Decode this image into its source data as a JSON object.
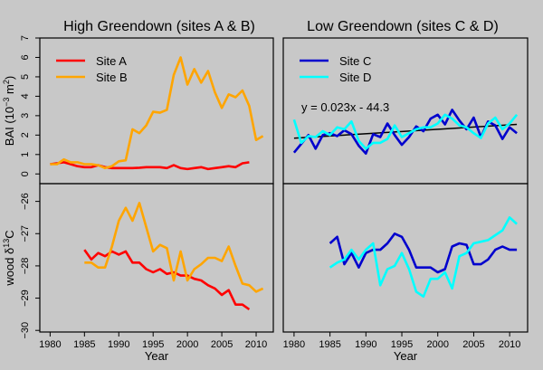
{
  "chart_data": [
    {
      "type": "line",
      "panel": "top-left",
      "title": "High Greendown (sites A & B)",
      "xlabel": "",
      "ylabel": "BAI (10^-3 m^2)",
      "ylim": [
        -0.5,
        7
      ],
      "yticks": [
        0,
        1,
        2,
        3,
        4,
        5,
        6,
        7
      ],
      "legend": "top-left",
      "series": [
        {
          "name": "Site A",
          "color": "#ff0000",
          "x": [
            1980,
            1981,
            1982,
            1983,
            1984,
            1985,
            1986,
            1987,
            1988,
            1989,
            1990,
            1991,
            1992,
            1993,
            1994,
            1995,
            1996,
            1997,
            1998,
            1999,
            2000,
            2001,
            2002,
            2003,
            2004,
            2005,
            2006,
            2007,
            2008,
            2009
          ],
          "values": [
            0.5,
            0.55,
            0.6,
            0.5,
            0.4,
            0.35,
            0.35,
            0.45,
            0.35,
            0.3,
            0.3,
            0.3,
            0.3,
            0.32,
            0.35,
            0.35,
            0.35,
            0.3,
            0.45,
            0.3,
            0.25,
            0.3,
            0.35,
            0.25,
            0.3,
            0.35,
            0.4,
            0.35,
            0.55,
            0.6
          ]
        },
        {
          "name": "Site B",
          "color": "#ffa500",
          "x": [
            1980,
            1981,
            1982,
            1983,
            1984,
            1985,
            1986,
            1987,
            1988,
            1989,
            1990,
            1991,
            1992,
            1993,
            1994,
            1995,
            1996,
            1997,
            1998,
            1999,
            2000,
            2001,
            2002,
            2003,
            2004,
            2005,
            2006,
            2007,
            2008,
            2009,
            2010,
            2011
          ],
          "values": [
            0.5,
            0.5,
            0.75,
            0.6,
            0.6,
            0.5,
            0.5,
            0.45,
            0.3,
            0.4,
            0.65,
            0.7,
            2.3,
            2.1,
            2.5,
            3.2,
            3.15,
            3.3,
            5.1,
            6.0,
            4.6,
            5.4,
            4.7,
            5.3,
            4.2,
            3.4,
            4.1,
            3.95,
            4.3,
            3.5,
            1.75,
            1.95
          ]
        }
      ]
    },
    {
      "type": "line",
      "panel": "top-right",
      "title": "Low Greendown (sites C & D)",
      "xlabel": "",
      "ylabel": "",
      "ylim": [
        -0.5,
        7
      ],
      "legend": "top-left",
      "annotation": "y = 0.023x - 44.3",
      "trendline": {
        "x": [
          1980,
          2011
        ],
        "values": [
          1.84,
          2.55
        ],
        "color": "#000000"
      },
      "series": [
        {
          "name": "Site C",
          "color": "#0000cd",
          "x": [
            1980,
            1981,
            1982,
            1983,
            1984,
            1985,
            1986,
            1987,
            1988,
            1989,
            1990,
            1991,
            1992,
            1993,
            1994,
            1995,
            1996,
            1997,
            1998,
            1999,
            2000,
            2001,
            2002,
            2003,
            2004,
            2005,
            2006,
            2007,
            2008,
            2009,
            2010,
            2011
          ],
          "values": [
            1.1,
            1.55,
            2.0,
            1.3,
            2.0,
            2.1,
            1.95,
            2.25,
            2.05,
            1.45,
            1.05,
            2.05,
            1.9,
            2.6,
            2.0,
            1.5,
            1.9,
            2.45,
            2.2,
            2.85,
            3.05,
            2.55,
            3.3,
            2.75,
            2.3,
            2.9,
            1.9,
            2.7,
            2.5,
            1.8,
            2.4,
            2.1
          ]
        },
        {
          "name": "Site D",
          "color": "#00ffff",
          "x": [
            1980,
            1981,
            1982,
            1983,
            1984,
            1985,
            1986,
            1987,
            1988,
            1989,
            1990,
            1991,
            1992,
            1993,
            1994,
            1995,
            1996,
            1997,
            1998,
            1999,
            2000,
            2001,
            2002,
            2003,
            2004,
            2005,
            2006,
            2007,
            2008,
            2009,
            2010,
            2011
          ],
          "values": [
            2.8,
            1.6,
            1.95,
            1.9,
            2.2,
            2.0,
            2.4,
            2.3,
            2.7,
            1.7,
            1.3,
            1.6,
            1.6,
            1.8,
            2.5,
            1.9,
            2.1,
            2.3,
            2.4,
            2.4,
            2.6,
            3.05,
            2.85,
            2.5,
            2.4,
            2.1,
            1.85,
            2.6,
            2.9,
            2.3,
            2.6,
            3.05
          ]
        }
      ]
    },
    {
      "type": "line",
      "panel": "bottom-left",
      "title": "",
      "xlabel": "Year",
      "ylabel": "wood δ13C",
      "xlim": [
        1978.5,
        2012.5
      ],
      "xticks": [
        1980,
        1985,
        1990,
        1995,
        2000,
        2005,
        2010
      ],
      "ylim": [
        -30.05,
        -25.45
      ],
      "yticks": [
        -26,
        -27,
        -28,
        -29,
        -30
      ],
      "series": [
        {
          "name": "Site A",
          "color": "#ff0000",
          "x": [
            1985,
            1986,
            1987,
            1988,
            1989,
            1990,
            1991,
            1992,
            1993,
            1994,
            1995,
            1996,
            1997,
            1998,
            1999,
            2000,
            2001,
            2002,
            2003,
            2004,
            2005,
            2006,
            2007,
            2008,
            2009
          ],
          "values": [
            -27.5,
            -27.8,
            -27.6,
            -27.7,
            -27.55,
            -27.65,
            -27.55,
            -27.9,
            -27.9,
            -28.1,
            -28.2,
            -28.1,
            -28.25,
            -28.2,
            -28.3,
            -28.3,
            -28.4,
            -28.45,
            -28.6,
            -28.7,
            -28.9,
            -28.75,
            -29.2,
            -29.2,
            -29.35
          ]
        },
        {
          "name": "Site B",
          "color": "#ffa500",
          "x": [
            1985,
            1986,
            1987,
            1988,
            1989,
            1990,
            1991,
            1992,
            1993,
            1994,
            1995,
            1996,
            1997,
            1998,
            1999,
            2000,
            2001,
            2002,
            2003,
            2004,
            2005,
            2006,
            2007,
            2008,
            2009,
            2010,
            2011
          ],
          "values": [
            -27.9,
            -27.9,
            -28.05,
            -28.05,
            -27.4,
            -26.6,
            -26.2,
            -26.6,
            -26.05,
            -26.8,
            -27.55,
            -27.35,
            -27.45,
            -28.45,
            -27.55,
            -28.45,
            -28.1,
            -27.95,
            -27.75,
            -27.75,
            -27.85,
            -27.4,
            -28.0,
            -28.55,
            -28.6,
            -28.8,
            -28.7
          ]
        }
      ]
    },
    {
      "type": "line",
      "panel": "bottom-right",
      "title": "",
      "xlabel": "Year",
      "ylabel": "",
      "xlim": [
        1978.5,
        2012.5
      ],
      "xticks": [
        1980,
        1985,
        1990,
        1995,
        2000,
        2005,
        2010
      ],
      "ylim": [
        -30.05,
        -25.45
      ],
      "series": [
        {
          "name": "Site C",
          "color": "#0000cd",
          "x": [
            1985,
            1986,
            1987,
            1988,
            1989,
            1990,
            1991,
            1992,
            1993,
            1994,
            1995,
            1996,
            1997,
            1998,
            1999,
            2000,
            2001,
            2002,
            2003,
            2004,
            2005,
            2006,
            2007,
            2008,
            2009,
            2010,
            2011
          ],
          "values": [
            -27.3,
            -27.1,
            -27.95,
            -27.6,
            -28.05,
            -27.6,
            -27.5,
            -27.5,
            -27.3,
            -27.0,
            -27.1,
            -27.5,
            -28.05,
            -28.05,
            -28.05,
            -28.2,
            -28.1,
            -27.4,
            -27.3,
            -27.35,
            -27.95,
            -27.95,
            -27.8,
            -27.5,
            -27.4,
            -27.5,
            -27.5
          ]
        },
        {
          "name": "Site D",
          "color": "#00ffff",
          "x": [
            1985,
            1986,
            1987,
            1988,
            1989,
            1990,
            1991,
            1992,
            1993,
            1994,
            1995,
            1996,
            1997,
            1998,
            1999,
            2000,
            2001,
            2002,
            2003,
            2004,
            2005,
            2006,
            2007,
            2008,
            2009,
            2010,
            2011
          ],
          "values": [
            -28.05,
            -27.9,
            -27.8,
            -27.5,
            -27.8,
            -27.5,
            -27.3,
            -28.6,
            -28.1,
            -28.0,
            -27.6,
            -28.1,
            -28.8,
            -28.95,
            -28.4,
            -28.4,
            -28.2,
            -28.7,
            -27.7,
            -27.6,
            -27.3,
            -27.25,
            -27.2,
            -27.05,
            -26.9,
            -26.5,
            -26.7
          ]
        }
      ]
    }
  ]
}
